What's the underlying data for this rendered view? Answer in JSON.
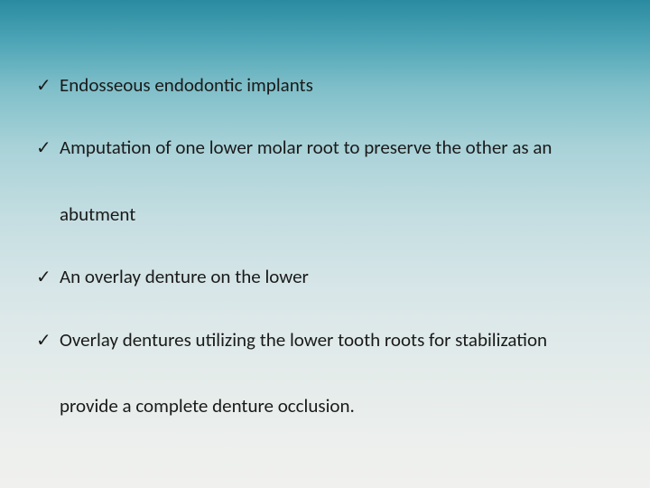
{
  "slide": {
    "background_gradient": {
      "top": "#2a8ba0",
      "bottom": "#f0f1ee"
    },
    "text_color": "#1a1a1a",
    "font_family": "Calibri",
    "font_size_pt": 16,
    "bullets": [
      {
        "marker": "✓",
        "text": "Endosseous endodontic implants"
      },
      {
        "marker": "✓",
        "text": "Amputation  of one lower molar root to preserve the other as an",
        "continuation": "abutment"
      },
      {
        "marker": "✓",
        "text": "An overlay denture on the lower"
      },
      {
        "marker": "✓",
        "text": "Overlay dentures utilizing the lower tooth roots for stabilization",
        "continuation": "provide a complete denture occlusion."
      }
    ]
  }
}
